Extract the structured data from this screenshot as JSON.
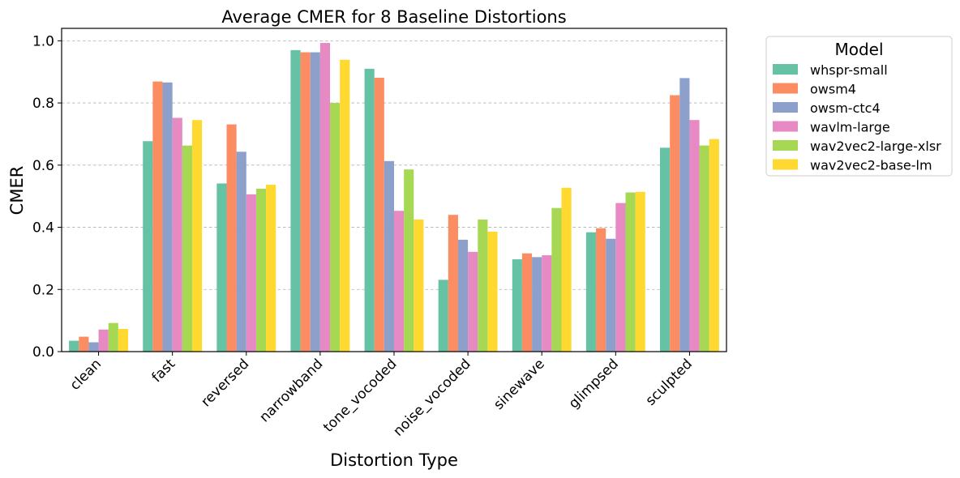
{
  "chart_data": {
    "type": "bar",
    "title": "Average CMER for 8 Baseline Distortions",
    "xlabel": "Distortion Type",
    "ylabel": "CMER",
    "ylim": [
      0,
      1.04
    ],
    "yticks": [
      "0.0",
      "0.2",
      "0.4",
      "0.6",
      "0.8",
      "1.0"
    ],
    "grid": "y-dashed",
    "legend_title": "Model",
    "legend_position": "outside-right",
    "categories": [
      "clean",
      "fast",
      "reversed",
      "narrowband",
      "tone_vocoded",
      "noise_vocoded",
      "sinewave",
      "glimpsed",
      "sculpted"
    ],
    "series": [
      {
        "name": "whspr-small",
        "color": "#66c2a5",
        "values": [
          0.035,
          0.677,
          0.541,
          0.97,
          0.91,
          0.231,
          0.297,
          0.384,
          0.656
        ]
      },
      {
        "name": "owsm4",
        "color": "#fc8d62",
        "values": [
          0.048,
          0.869,
          0.731,
          0.963,
          0.881,
          0.44,
          0.316,
          0.397,
          0.825
        ]
      },
      {
        "name": "owsm-ctc4",
        "color": "#8da0cb",
        "values": [
          0.03,
          0.866,
          0.643,
          0.963,
          0.613,
          0.36,
          0.304,
          0.363,
          0.88
        ]
      },
      {
        "name": "wavlm-large",
        "color": "#e78ac3",
        "values": [
          0.071,
          0.752,
          0.506,
          0.993,
          0.453,
          0.321,
          0.31,
          0.478,
          0.745
        ]
      },
      {
        "name": "wav2vec2-large-xlsr",
        "color": "#a6d854",
        "values": [
          0.092,
          0.663,
          0.524,
          0.8,
          0.586,
          0.425,
          0.462,
          0.512,
          0.663
        ]
      },
      {
        "name": "wav2vec2-base-lm",
        "color": "#ffd92f",
        "values": [
          0.073,
          0.745,
          0.537,
          0.939,
          0.425,
          0.386,
          0.527,
          0.514,
          0.684
        ]
      }
    ]
  }
}
